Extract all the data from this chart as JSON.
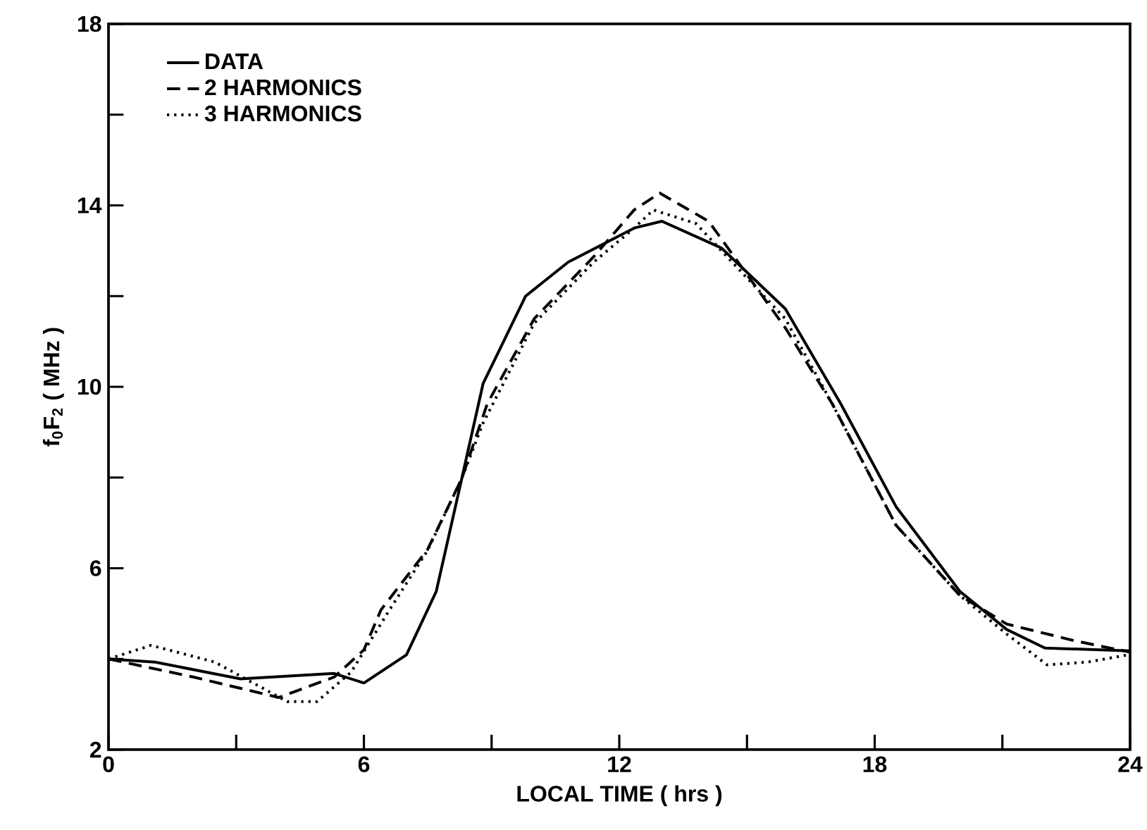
{
  "chart_data": {
    "type": "line",
    "xlabel": "LOCAL TIME ( hrs )",
    "ylabel": "f$_{0}$F$_{2}$ ( MHz )",
    "xlim": [
      0,
      24
    ],
    "ylim": [
      2,
      18
    ],
    "xticks": [
      0,
      {
        "value": 3,
        "label": null
      },
      6,
      {
        "value": 9,
        "label": null
      },
      12,
      {
        "value": 15,
        "label": null
      },
      18,
      {
        "value": 21,
        "label": null
      },
      24
    ],
    "yticks": [
      2,
      {
        "value": 4,
        "label": null
      },
      6,
      {
        "value": 8,
        "label": null
      },
      10,
      {
        "value": 12,
        "label": null
      },
      14,
      {
        "value": 16,
        "label": null
      },
      18
    ],
    "grid": false,
    "legend": "top left",
    "marker": "none",
    "series": [
      {
        "name": "DATA",
        "color": "#000000",
        "line_style": "solid",
        "x": [
          0,
          1.1,
          3.1,
          5.3,
          6.0,
          7.0,
          7.7,
          8.3,
          8.8,
          9.8,
          10.8,
          12.35,
          13.0,
          14.4,
          15.9,
          17.2,
          18.5,
          20.0,
          21.1,
          22.0,
          24.0
        ],
        "values": [
          4.0,
          3.93,
          3.56,
          3.68,
          3.47,
          4.09,
          5.49,
          7.98,
          10.07,
          12.0,
          12.75,
          13.5,
          13.65,
          13.06,
          11.72,
          9.63,
          7.36,
          5.49,
          4.65,
          4.24,
          4.18
        ]
      },
      {
        "name": "2 HARMONICS",
        "color": "#000000",
        "line_style": "dashed",
        "x": [
          0,
          2.0,
          4.0,
          5.3,
          6.0,
          6.4,
          7.5,
          8.3,
          8.9,
          10.0,
          11.4,
          12.35,
          12.95,
          14.1,
          15.9,
          17.0,
          18.5,
          20.0,
          21.1,
          22.7,
          24.0
        ],
        "values": [
          4.0,
          3.6,
          3.15,
          3.6,
          4.2,
          5.08,
          6.42,
          7.98,
          9.63,
          11.5,
          12.87,
          13.9,
          14.27,
          13.65,
          11.3,
          9.63,
          6.95,
          5.4,
          4.77,
          4.4,
          4.15
        ]
      },
      {
        "name": "3 HARMONICS",
        "color": "#000000",
        "line_style": "dotted",
        "x": [
          0,
          1.0,
          2.5,
          4.2,
          4.9,
          5.7,
          6.6,
          7.5,
          8.3,
          8.8,
          10.0,
          11.4,
          12.35,
          12.8,
          13.8,
          15.9,
          17.0,
          18.5,
          20.0,
          21.1,
          22.05,
          23.0,
          24.0
        ],
        "values": [
          4.0,
          4.3,
          3.93,
          3.06,
          3.06,
          3.71,
          5.08,
          6.4,
          7.98,
          9.2,
          11.4,
          12.75,
          13.5,
          13.9,
          13.6,
          11.5,
          9.63,
          6.95,
          5.4,
          4.55,
          3.87,
          3.93,
          4.1
        ]
      }
    ]
  }
}
